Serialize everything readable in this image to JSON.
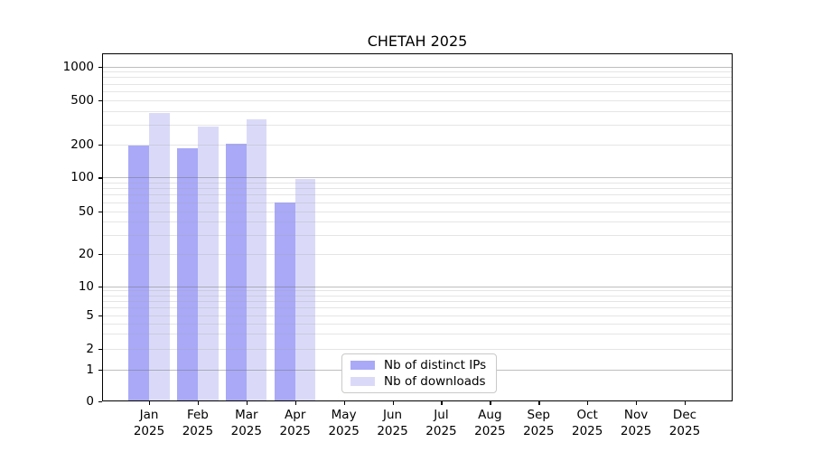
{
  "chart_data": {
    "type": "bar",
    "title": "CHETAH 2025",
    "xlabel": "",
    "ylabel": "",
    "months": [
      "Jan",
      "Feb",
      "Mar",
      "Apr",
      "May",
      "Jun",
      "Jul",
      "Aug",
      "Sep",
      "Oct",
      "Nov",
      "Dec"
    ],
    "year": "2025",
    "series": [
      {
        "name": "Nb of distinct IPs",
        "key": "distinct-ips",
        "color": "#a9a9f8",
        "values": [
          195,
          186,
          203,
          60,
          0,
          0,
          0,
          0,
          0,
          0,
          0,
          0
        ]
      },
      {
        "name": "Nb of downloads",
        "key": "downloads",
        "color": "#dadaf8",
        "values": [
          385,
          292,
          333,
          97,
          0,
          0,
          0,
          0,
          0,
          0,
          0,
          0
        ]
      }
    ],
    "yscale": "symlog",
    "yticks": [
      0,
      1,
      2,
      5,
      10,
      20,
      50,
      100,
      200,
      500,
      1000
    ],
    "ylim": [
      0,
      1350
    ],
    "grid": {
      "horizontal": true,
      "major_values": [
        1,
        10,
        100,
        1000
      ],
      "minor_values": [
        2,
        3,
        4,
        5,
        6,
        7,
        8,
        9,
        20,
        30,
        40,
        50,
        60,
        70,
        80,
        90,
        200,
        300,
        400,
        500,
        600,
        700,
        800,
        900
      ]
    },
    "legend_position": "lower-center"
  },
  "colors": {
    "background": "#ffffff",
    "spine": "#000000",
    "major_grid": "rgba(110,110,110,0.45)",
    "minor_grid": "rgba(160,160,160,0.28)",
    "legend_border": "#c9c9c9",
    "text": "#000000"
  }
}
